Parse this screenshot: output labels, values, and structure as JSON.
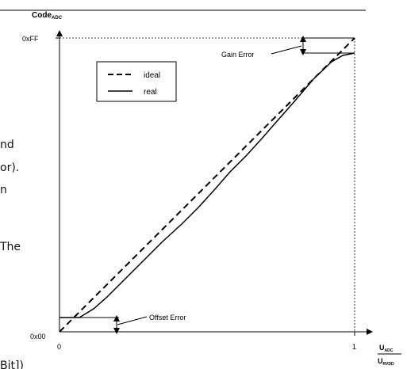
{
  "background_text": {
    "line1": "nd",
    "line2": "or).",
    "line3": "n",
    "line4": "The",
    "line5": "Bit])"
  },
  "axes": {
    "y_label_main": "Code",
    "y_label_sub": "ADC",
    "y_tick_top": "0xFF",
    "y_tick_bottom": "0x00",
    "x_tick_zero": "0",
    "x_tick_one": "1",
    "x_label_num": "U",
    "x_label_num_sub": "ADC",
    "x_label_den": "U",
    "x_label_den_sub": "RVDD"
  },
  "legend": {
    "ideal": "ideal",
    "real": "real"
  },
  "annotations": {
    "gain_error": "Gain Error",
    "offset_error": "Offset Error"
  }
}
